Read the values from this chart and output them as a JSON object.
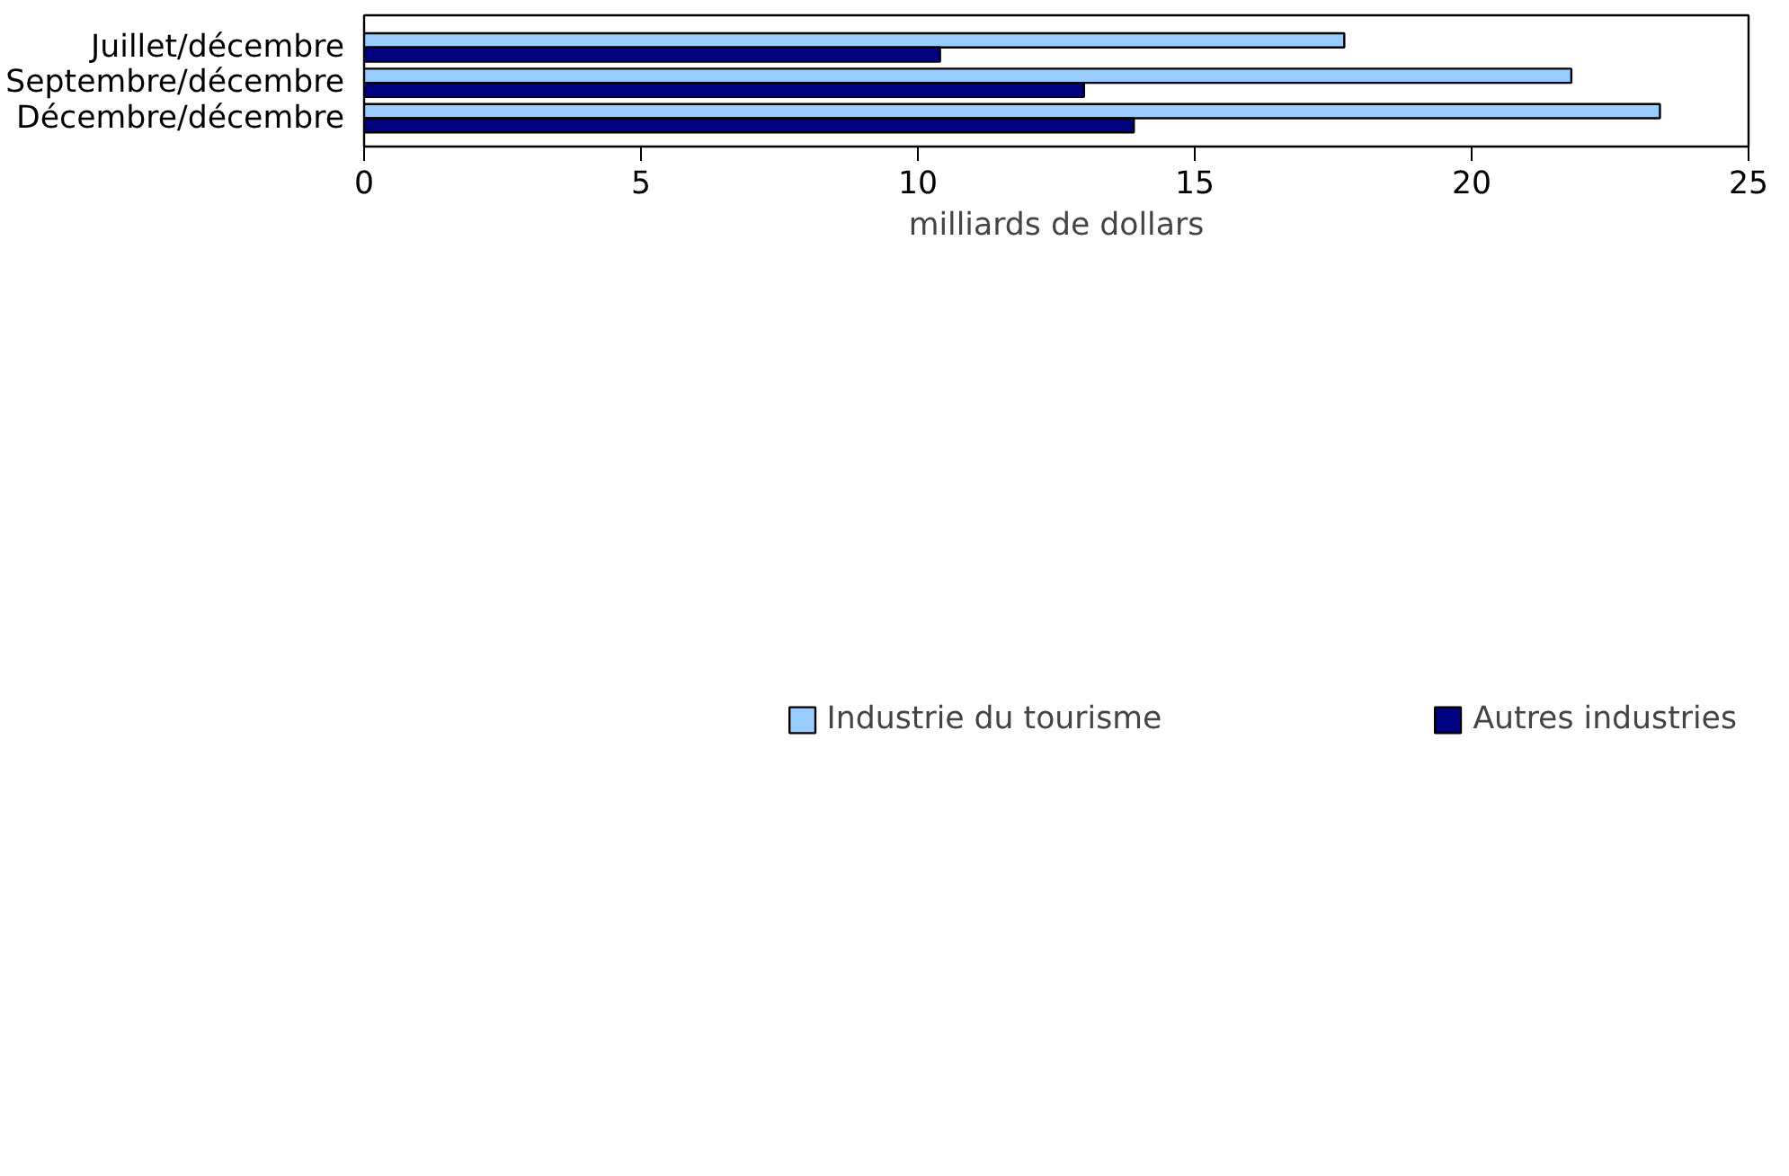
{
  "chart_data": {
    "type": "bar",
    "orientation": "horizontal",
    "categories": [
      "Juillet/décembre",
      "Septembre/décembre",
      "Décembre/décembre"
    ],
    "series": [
      {
        "name": "Industrie du tourisme",
        "color": "#99ccff",
        "values": [
          17.7,
          21.8,
          23.4
        ]
      },
      {
        "name": "Autres industries",
        "color": "#000080",
        "values": [
          10.4,
          13.0,
          13.9
        ]
      }
    ],
    "xlabel": "milliards de dollars",
    "xlim": [
      0,
      25
    ],
    "xticks": [
      0,
      5,
      10,
      15,
      20,
      25
    ],
    "grid": false,
    "legend": "bottom"
  }
}
